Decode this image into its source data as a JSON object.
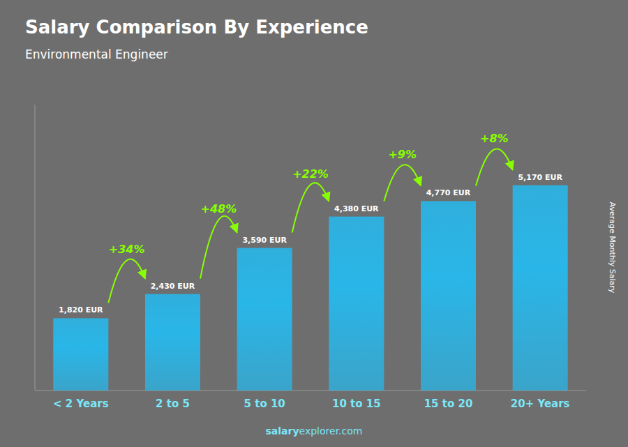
{
  "chart_data": {
    "type": "bar",
    "title": "Salary Comparison By Experience",
    "subtitle": "Environmental Engineer",
    "ylabel": "Average Monthly Salary",
    "categories": [
      "< 2 Years",
      "2 to 5",
      "5 to 10",
      "10 to 15",
      "15 to 20",
      "20+ Years"
    ],
    "values": [
      1820,
      2430,
      3590,
      4380,
      4770,
      5170
    ],
    "value_labels": [
      "1,820 EUR",
      "2,430 EUR",
      "3,590 EUR",
      "4,380 EUR",
      "4,770 EUR",
      "5,170 EUR"
    ],
    "data_labels": true,
    "annotations": [
      "+34%",
      "+48%",
      "+22%",
      "+9%",
      "+8%"
    ],
    "watermark": [
      "salary",
      "explorer.com"
    ],
    "color": "#29b6e8",
    "ylim": [
      0,
      7200
    ],
    "tick_labels": "x",
    "grid": false
  }
}
